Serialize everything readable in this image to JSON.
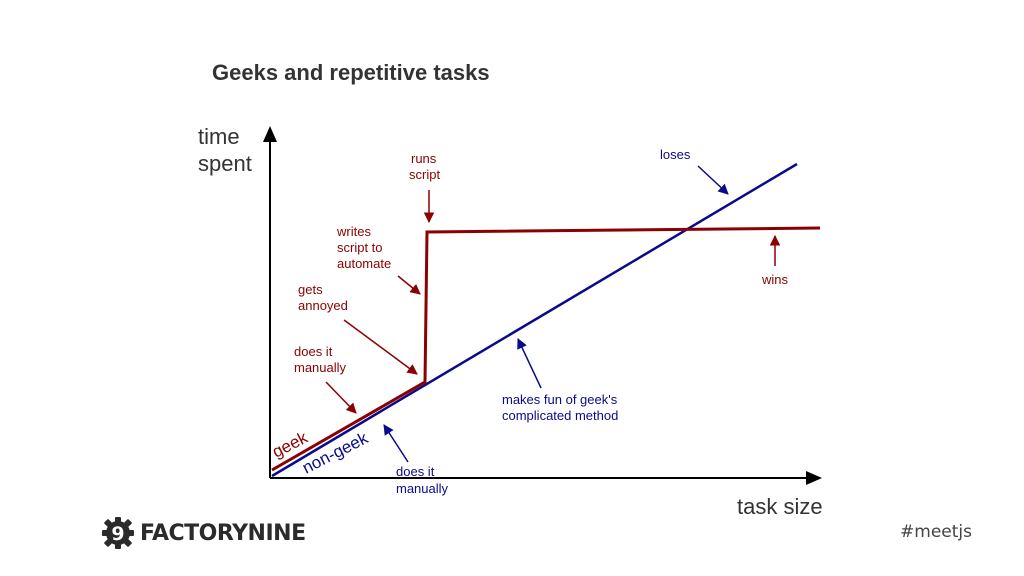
{
  "title": "Geeks and repetitive tasks",
  "axes": {
    "y_label_line1": "time",
    "y_label_line2": "spent",
    "x_label": "task size"
  },
  "lines": {
    "geek_label": "geek",
    "nongeek_label": "non-geek"
  },
  "annotations": {
    "runs_script": [
      "runs",
      "script"
    ],
    "writes_script": [
      "writes",
      "script to",
      "automate"
    ],
    "gets_annoyed": [
      "gets",
      "annoyed"
    ],
    "does_it_manually_geek": [
      "does it",
      "manually"
    ],
    "does_it_manually_nongeek": [
      "does it",
      "manually"
    ],
    "makes_fun": [
      "makes fun of geek's",
      "complicated method"
    ],
    "loses": [
      "loses"
    ],
    "wins": [
      "wins"
    ]
  },
  "colors": {
    "geek": "#8b0000",
    "nongeek": "#0a0a8c",
    "axis": "#000000"
  },
  "footer": {
    "logo_text": "FACTORYNINE",
    "logo_digit": "9",
    "hashtag": "#meetjs"
  }
}
